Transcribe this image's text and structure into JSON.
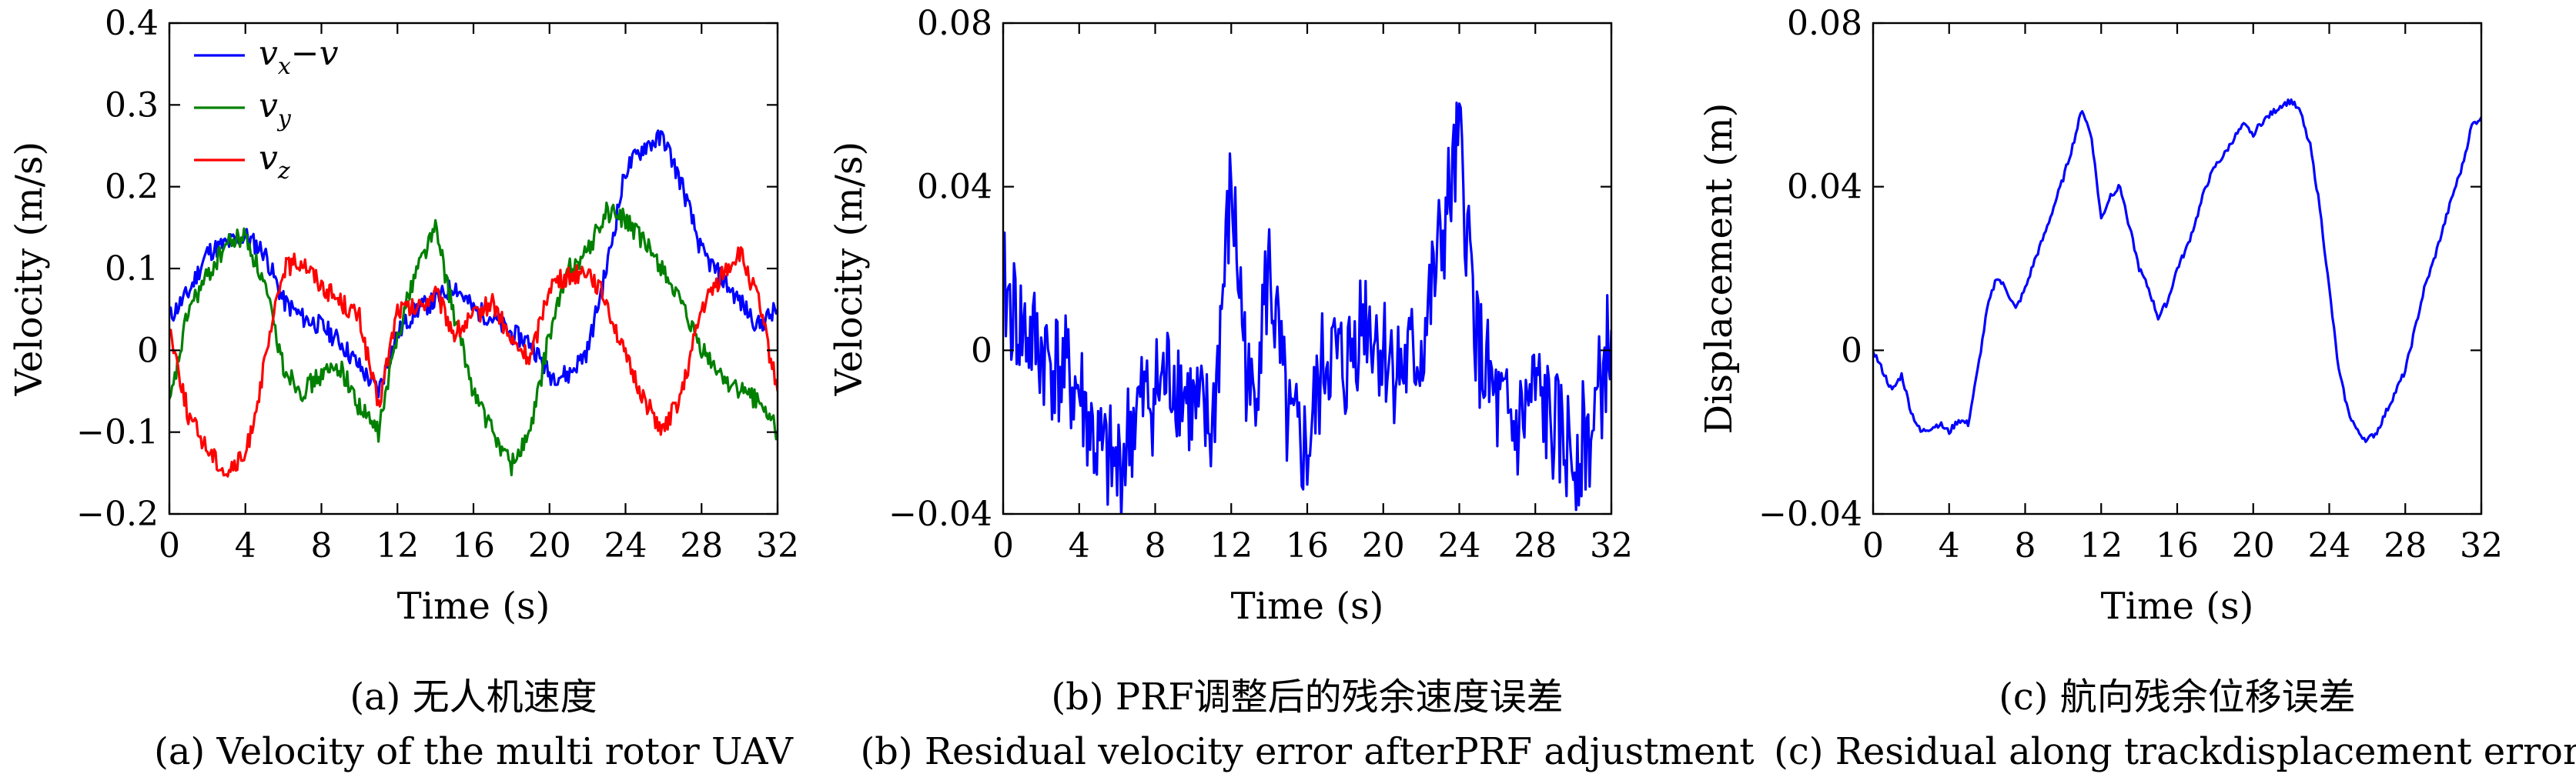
{
  "chart_data": [
    {
      "type": "line",
      "xlabel": "Time (s)",
      "ylabel": "Velocity (m/s)",
      "xlim": [
        0,
        32
      ],
      "ylim": [
        -0.2,
        0.4
      ],
      "xticks": [
        0,
        4,
        8,
        12,
        16,
        20,
        24,
        28,
        32
      ],
      "yticks": [
        -0.2,
        -0.1,
        0,
        0.1,
        0.2,
        0.3,
        0.4
      ],
      "ytick_labels": [
        "−0.2",
        "−0.1",
        "0",
        "0.1",
        "0.2",
        "0.3",
        "0.4"
      ],
      "grid": false,
      "legend_position": "top-left",
      "caption_cn": "(a) 无人机速度",
      "caption_en": "(a) Velocity of the multi rotor UAV",
      "series": [
        {
          "name": "vx−v",
          "legend_main": "v",
          "legend_sub": "x",
          "legend_tail": "−v",
          "color": "#0000ff",
          "x": [
            0,
            1,
            2,
            3,
            4,
            5,
            6,
            7,
            8,
            9,
            10,
            11,
            12,
            13,
            14,
            15,
            16,
            17,
            18,
            19,
            20,
            21,
            22,
            23,
            24,
            25,
            26,
            27,
            28,
            29,
            30,
            31,
            32
          ],
          "y": [
            0.04,
            0.07,
            0.12,
            0.13,
            0.14,
            0.12,
            0.06,
            0.04,
            0.03,
            0.01,
            -0.02,
            -0.05,
            0.02,
            0.05,
            0.06,
            0.08,
            0.05,
            0.04,
            0.02,
            0.01,
            -0.03,
            -0.03,
            0.0,
            0.1,
            0.22,
            0.25,
            0.26,
            0.2,
            0.12,
            0.09,
            0.06,
            0.03,
            0.05
          ]
        },
        {
          "name": "vy",
          "legend_main": "v",
          "legend_sub": "y",
          "legend_tail": "",
          "color": "#008000",
          "x": [
            0,
            1,
            2,
            3,
            4,
            5,
            6,
            7,
            8,
            9,
            10,
            11,
            12,
            13,
            14,
            15,
            16,
            17,
            18,
            19,
            20,
            21,
            22,
            23,
            24,
            25,
            26,
            27,
            28,
            29,
            30,
            31,
            32
          ],
          "y": [
            -0.07,
            0.05,
            0.09,
            0.13,
            0.14,
            0.08,
            -0.02,
            -0.05,
            -0.03,
            -0.02,
            -0.07,
            -0.1,
            0.02,
            0.1,
            0.15,
            0.04,
            -0.05,
            -0.1,
            -0.14,
            -0.1,
            0.02,
            0.1,
            0.12,
            0.17,
            0.16,
            0.13,
            0.1,
            0.05,
            0.0,
            -0.03,
            -0.05,
            -0.06,
            -0.1
          ]
        },
        {
          "name": "vz",
          "legend_main": "v",
          "legend_sub": "z",
          "legend_tail": "",
          "color": "#ff0000",
          "x": [
            0,
            1,
            2,
            3,
            4,
            5,
            6,
            7,
            8,
            9,
            10,
            11,
            12,
            13,
            14,
            15,
            16,
            17,
            18,
            19,
            20,
            21,
            22,
            23,
            24,
            25,
            26,
            27,
            28,
            29,
            30,
            31,
            32
          ],
          "y": [
            0.03,
            -0.08,
            -0.12,
            -0.15,
            -0.13,
            -0.02,
            0.1,
            0.11,
            0.08,
            0.06,
            0.04,
            -0.07,
            0.05,
            0.05,
            0.07,
            0.02,
            0.04,
            0.06,
            0.01,
            -0.01,
            0.08,
            0.09,
            0.1,
            0.06,
            -0.01,
            -0.06,
            -0.1,
            -0.05,
            0.05,
            0.09,
            0.12,
            0.06,
            -0.05
          ]
        }
      ]
    },
    {
      "type": "line",
      "xlabel": "Time (s)",
      "ylabel": "Velocity (m/s)",
      "xlim": [
        0,
        32
      ],
      "ylim": [
        -0.04,
        0.08
      ],
      "xticks": [
        0,
        4,
        8,
        12,
        16,
        20,
        24,
        28,
        32
      ],
      "yticks": [
        -0.04,
        0,
        0.04,
        0.08
      ],
      "ytick_labels": [
        "−0.04",
        "0",
        "0.04",
        "0.08"
      ],
      "grid": false,
      "caption_cn": "(b) PRF调整后的残余速度误差",
      "caption_en": "(b) Residual velocity error afterPRF adjustment",
      "series": [
        {
          "color": "#0000ff",
          "x": [
            0,
            1,
            2,
            3,
            4,
            5,
            6,
            7,
            8,
            9,
            10,
            11,
            12,
            13,
            14,
            15,
            16,
            17,
            18,
            19,
            20,
            21,
            22,
            23,
            24,
            25,
            26,
            27,
            28,
            29,
            30,
            31,
            32
          ],
          "y": [
            0.015,
            0.005,
            0.0,
            -0.005,
            -0.01,
            -0.025,
            -0.03,
            -0.015,
            -0.01,
            -0.005,
            -0.015,
            -0.02,
            0.04,
            -0.015,
            0.02,
            -0.02,
            -0.025,
            0.0,
            -0.005,
            0.01,
            0.0,
            -0.005,
            0.0,
            0.025,
            0.05,
            0.0,
            -0.015,
            -0.02,
            -0.01,
            -0.02,
            -0.025,
            -0.02,
            0.005
          ]
        }
      ]
    },
    {
      "type": "line",
      "xlabel": "Time (s)",
      "ylabel": "Displacement (m)",
      "xlim": [
        0,
        32
      ],
      "ylim": [
        -0.04,
        0.08
      ],
      "xticks": [
        0,
        4,
        8,
        12,
        16,
        20,
        24,
        28,
        32
      ],
      "yticks": [
        -0.04,
        0,
        0.04,
        0.08
      ],
      "ytick_labels": [
        "−0.04",
        "0",
        "0.04",
        "0.08"
      ],
      "grid": false,
      "caption_cn": "(c) 航向残余位移误差",
      "caption_en": "(c) Residual along trackdisplacement error",
      "series": [
        {
          "color": "#0000ff",
          "x": [
            0,
            0.5,
            1,
            1.5,
            2,
            2.5,
            3,
            3.5,
            4,
            4.5,
            5,
            5.5,
            6,
            6.5,
            7,
            7.5,
            8,
            8.5,
            9,
            9.5,
            10,
            10.5,
            11,
            11.5,
            12,
            12.5,
            13,
            13.5,
            14,
            14.5,
            15,
            15.5,
            16,
            16.5,
            17,
            17.5,
            18,
            18.5,
            19,
            19.5,
            20,
            20.5,
            21,
            21.5,
            22,
            22.5,
            23,
            23.5,
            24,
            24.5,
            25,
            25.5,
            26,
            26.5,
            27,
            27.5,
            28,
            28.5,
            29,
            29.5,
            30,
            30.5,
            31,
            31.5,
            32
          ],
          "y": [
            0.0,
            -0.005,
            -0.01,
            -0.006,
            -0.015,
            -0.02,
            -0.019,
            -0.018,
            -0.02,
            -0.017,
            -0.018,
            -0.005,
            0.01,
            0.018,
            0.015,
            0.01,
            0.015,
            0.022,
            0.028,
            0.035,
            0.042,
            0.05,
            0.059,
            0.052,
            0.032,
            0.038,
            0.04,
            0.03,
            0.02,
            0.015,
            0.008,
            0.012,
            0.02,
            0.025,
            0.032,
            0.04,
            0.045,
            0.048,
            0.052,
            0.055,
            0.053,
            0.056,
            0.058,
            0.06,
            0.061,
            0.058,
            0.05,
            0.035,
            0.015,
            -0.005,
            -0.015,
            -0.02,
            -0.022,
            -0.02,
            -0.015,
            -0.01,
            -0.005,
            0.005,
            0.015,
            0.022,
            0.03,
            0.038,
            0.045,
            0.055,
            0.057
          ]
        }
      ]
    }
  ]
}
